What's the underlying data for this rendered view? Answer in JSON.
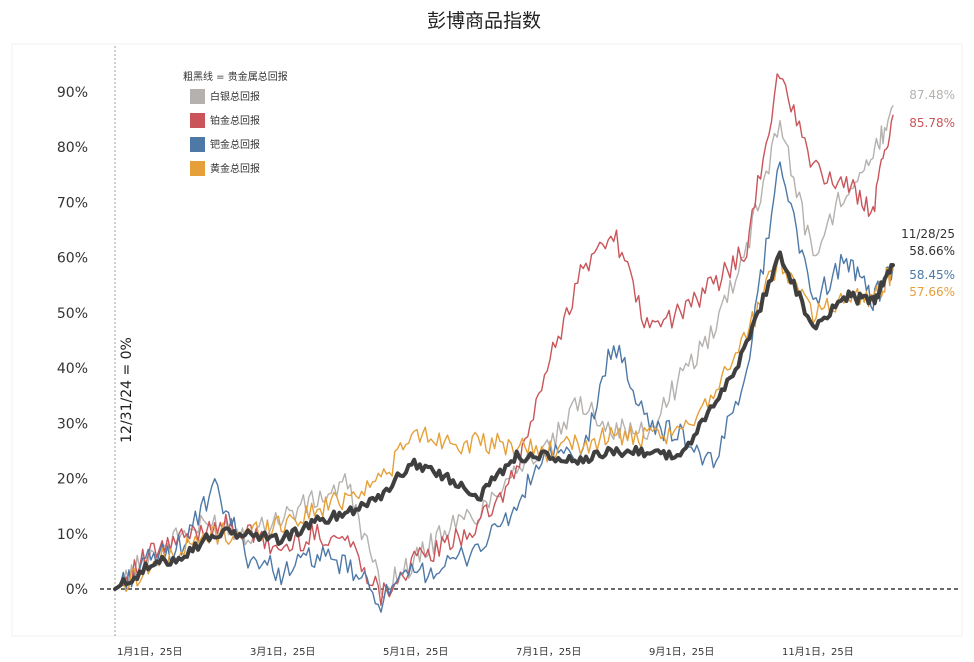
{
  "chart_data": {
    "type": "line",
    "title": "彭博商品指数",
    "xlabel": "",
    "ylabel": "",
    "ylim": [
      -8,
      96
    ],
    "yticks": [
      "0%",
      "10%",
      "20%",
      "30%",
      "40%",
      "50%",
      "60%",
      "70%",
      "80%",
      "90%"
    ],
    "xticks": [
      {
        "label": "1月1日，25日",
        "x": 0
      },
      {
        "label": "3月1日，25日",
        "x": 2
      },
      {
        "label": "5月1日，25日",
        "x": 4
      },
      {
        "label": "7月1日，25日",
        "x": 6
      },
      {
        "label": "9月1日，25日",
        "x": 8
      },
      {
        "label": "11月1日，25日",
        "x": 10
      }
    ],
    "baseline_label": "12/31/24 = 0%",
    "legend_note": "粗黑线 = 贵金属总回报",
    "legend_position": "top-left",
    "end_date": "11/28/25",
    "x": [
      0,
      0.5,
      1,
      1.5,
      2,
      2.5,
      3,
      3.5,
      4,
      4.5,
      5,
      5.5,
      6,
      6.5,
      7,
      7.5,
      8,
      8.5,
      9,
      9.5,
      10,
      10.5,
      11,
      11.4,
      11.7
    ],
    "series": [
      {
        "name": "白银总回报",
        "color": "#b5b1ae",
        "width": 1.4,
        "end_label": "87.48%",
        "values": [
          0,
          6,
          10,
          12,
          10,
          13,
          16,
          19,
          0,
          5,
          11,
          14,
          22,
          25,
          34,
          29,
          28,
          38,
          47,
          62,
          85,
          60,
          73,
          78,
          87.48
        ]
      },
      {
        "name": "铂金总回报",
        "color": "#c9555a",
        "width": 1.4,
        "end_label": "85.78%",
        "values": [
          0,
          6,
          9,
          12,
          10,
          7,
          10,
          9,
          -1,
          5,
          8,
          12,
          20,
          40,
          57,
          65,
          47,
          50,
          55,
          62,
          94,
          76,
          73,
          69,
          85.78
        ]
      },
      {
        "name": "钯金总回报",
        "color": "#4e79a7",
        "width": 1.4,
        "end_label": "58.45%",
        "values": [
          0,
          5,
          8,
          18,
          6,
          3,
          6,
          4,
          -2,
          3,
          4,
          8,
          14,
          25,
          23,
          45,
          30,
          28,
          22,
          40,
          78,
          52,
          60,
          52,
          58.45
        ]
      },
      {
        "name": "黄金总回报",
        "color": "#e5a03a",
        "width": 1.4,
        "end_label": "57.66%",
        "values": [
          0,
          4,
          7,
          10,
          10,
          12,
          14,
          17,
          20,
          28,
          27,
          26,
          26,
          25,
          26,
          28,
          27,
          28,
          36,
          46,
          60,
          50,
          53,
          53,
          57.66
        ]
      },
      {
        "name": "贵金属总回报",
        "color": "#3f3f3f",
        "width": 4,
        "end_label": "58.66%",
        "values": [
          0,
          4,
          6,
          10,
          10,
          9,
          12,
          14,
          17,
          23,
          20,
          17,
          24,
          24,
          23,
          25,
          25,
          24,
          33,
          44,
          61,
          47,
          53,
          52,
          58.66
        ]
      }
    ],
    "legend_order": [
      0,
      1,
      2,
      3
    ]
  }
}
